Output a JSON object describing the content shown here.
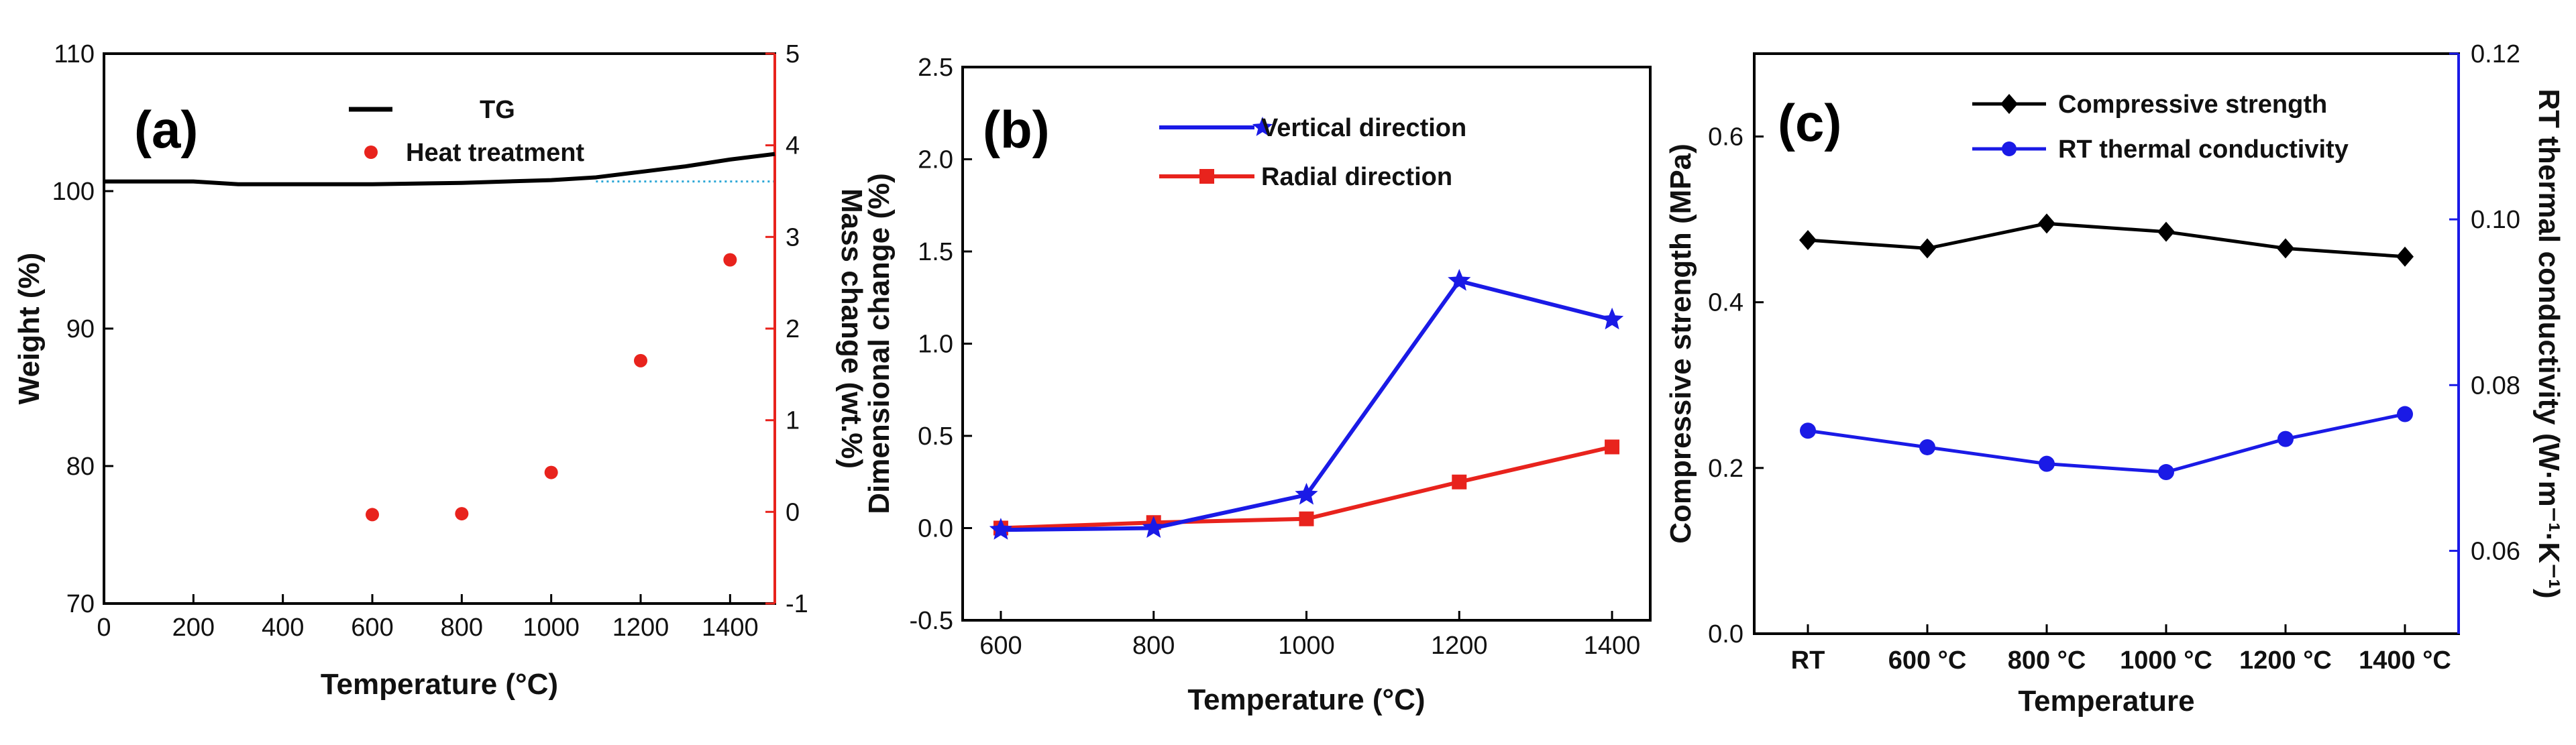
{
  "chart_data": [
    {
      "type": "line",
      "panel": "(a)",
      "xlabel": "Temperature (°C)",
      "xlim": [
        0,
        1500
      ],
      "xticks": [
        0,
        200,
        400,
        600,
        800,
        1000,
        1200,
        1400
      ],
      "ylabel": "Weight (%)",
      "ylim": [
        70,
        110
      ],
      "yticks": [
        70,
        80,
        90,
        100,
        110
      ],
      "y2label": "Mass change (wt.%)",
      "y2lim": [
        -1,
        5
      ],
      "y2ticks": [
        -1,
        0,
        1,
        2,
        3,
        4,
        5
      ],
      "legend": [
        "TG",
        "Heat treatment"
      ],
      "series": [
        {
          "name": "TG",
          "axis": "left",
          "color": "#000000",
          "x": [
            0,
            200,
            300,
            600,
            800,
            1000,
            1100,
            1200,
            1300,
            1400,
            1500
          ],
          "y": [
            100.7,
            100.7,
            100.5,
            100.5,
            100.6,
            100.8,
            101.0,
            101.4,
            101.8,
            102.3,
            102.7
          ]
        },
        {
          "name": "Heat treatment",
          "axis": "right",
          "color": "#e8231d",
          "x": [
            600,
            800,
            1000,
            1200,
            1400
          ],
          "y": [
            -0.03,
            -0.02,
            0.43,
            1.65,
            2.75
          ]
        }
      ]
    },
    {
      "type": "line",
      "panel": "(b)",
      "xlabel": "Temperature (°C)",
      "xticks": [
        600,
        800,
        1000,
        1200,
        1400
      ],
      "xlim": [
        550,
        1450
      ],
      "ylabel": "Dimensional change (%)",
      "ylim": [
        -0.5,
        2.5
      ],
      "yticks": [
        "-0.5",
        "0.0",
        "0.5",
        "1.0",
        "1.5",
        "2.0",
        "2.5"
      ],
      "legend": [
        "Vertical direction",
        "Radial direction"
      ],
      "series": [
        {
          "name": "Vertical direction",
          "color": "#1a1ae6",
          "marker": "star",
          "x": [
            600,
            800,
            1000,
            1200,
            1400
          ],
          "y": [
            -0.01,
            0.0,
            0.18,
            1.34,
            1.13
          ]
        },
        {
          "name": "Radial direction",
          "color": "#e8231d",
          "marker": "square",
          "x": [
            600,
            800,
            1000,
            1200,
            1400
          ],
          "y": [
            0.0,
            0.03,
            0.05,
            0.25,
            0.44
          ]
        }
      ]
    },
    {
      "type": "line",
      "panel": "(c)",
      "xlabel": "Temperature",
      "categories": [
        "RT",
        "600 °C",
        "800 °C",
        "1000 °C",
        "1200 °C",
        "1400 °C"
      ],
      "ylabel": "Compressive strength (MPa)",
      "ylim": [
        0,
        0.7
      ],
      "yticks": [
        "0.0",
        "0.2",
        "0.4",
        "0.6"
      ],
      "y2label": "RT thermal conductivity (W·m⁻¹·K⁻¹)",
      "y2lim": [
        0.05,
        0.12
      ],
      "y2ticks": [
        "0.06",
        "0.08",
        "0.10",
        "0.12"
      ],
      "legend": [
        "Compressive strength",
        "RT thermal conductivity"
      ],
      "series": [
        {
          "name": "Compressive strength",
          "axis": "left",
          "color": "#000000",
          "marker": "diamond",
          "values": [
            0.475,
            0.465,
            0.495,
            0.485,
            0.465,
            0.455
          ]
        },
        {
          "name": "RT thermal conductivity",
          "axis": "right",
          "color": "#1a1ae6",
          "marker": "circle",
          "values": [
            0.0745,
            0.0725,
            0.0705,
            0.0695,
            0.0735,
            0.0765
          ]
        }
      ]
    }
  ]
}
